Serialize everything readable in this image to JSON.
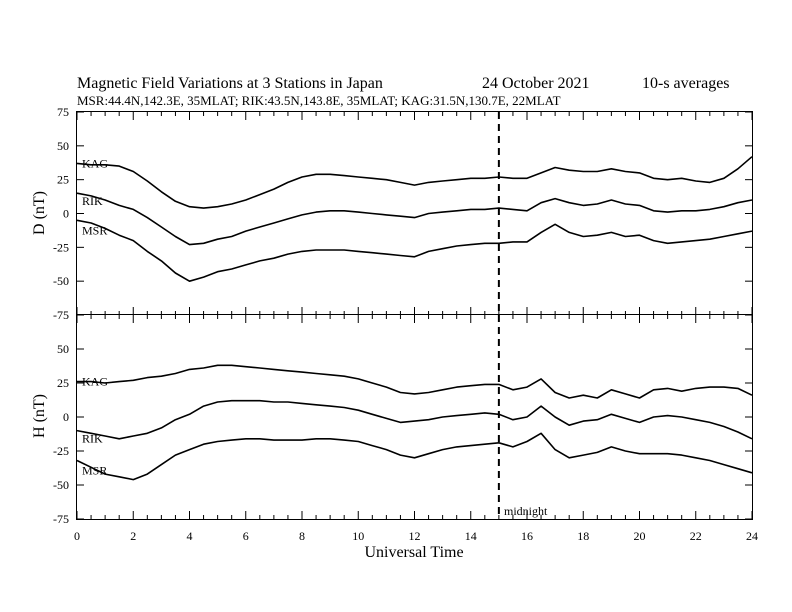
{
  "title": "Magnetic Field Variations at 3 Stations in Japan",
  "date": "24 October 2021",
  "averaging": "10-s averages",
  "stations_line": "MSR:44.4N,142.3E, 35MLAT;  RIK:43.5N,143.8E, 35MLAT;  KAG:31.5N,130.7E, 22MLAT",
  "xlabel": "Universal Time",
  "midnight_label": "midnight",
  "chart_data": [
    {
      "type": "line",
      "ylabel": "D (nT)",
      "xlim": [
        0,
        24
      ],
      "ylim": [
        -75,
        75
      ],
      "xticks": [
        0,
        2,
        4,
        6,
        8,
        10,
        12,
        14,
        16,
        18,
        20,
        22,
        24
      ],
      "yticks": [
        75,
        50,
        25,
        0,
        -25,
        -50,
        -75
      ],
      "vline_x": 15,
      "x": [
        0,
        0.5,
        1,
        1.5,
        2,
        2.5,
        3,
        3.5,
        4,
        4.5,
        5,
        5.5,
        6,
        6.5,
        7,
        7.5,
        8,
        8.5,
        9,
        9.5,
        10,
        10.5,
        11,
        11.5,
        12,
        12.5,
        13,
        13.5,
        14,
        14.5,
        15,
        15.5,
        16,
        16.5,
        17,
        17.5,
        18,
        18.5,
        19,
        19.5,
        20,
        20.5,
        21,
        21.5,
        22,
        22.5,
        23,
        23.5,
        24
      ],
      "series": [
        {
          "name": "KAG",
          "values": [
            37,
            36,
            36,
            35,
            31,
            24,
            16,
            9,
            5,
            4,
            5,
            7,
            10,
            14,
            18,
            23,
            27,
            29,
            29,
            28,
            27,
            26,
            25,
            23,
            21,
            23,
            24,
            25,
            26,
            26,
            27,
            26,
            26,
            30,
            34,
            32,
            31,
            31,
            33,
            31,
            30,
            26,
            25,
            26,
            24,
            23,
            26,
            33,
            42
          ]
        },
        {
          "name": "RIK",
          "values": [
            15,
            13,
            10,
            6,
            3,
            -3,
            -10,
            -17,
            -23,
            -22,
            -19,
            -17,
            -13,
            -10,
            -7,
            -4,
            -1,
            1,
            2,
            2,
            1,
            0,
            -1,
            -2,
            -3,
            0,
            1,
            2,
            3,
            3,
            4,
            3,
            2,
            8,
            11,
            8,
            6,
            7,
            10,
            7,
            6,
            2,
            1,
            2,
            2,
            3,
            5,
            8,
            10
          ]
        },
        {
          "name": "MSR",
          "values": [
            -5,
            -7,
            -11,
            -16,
            -20,
            -28,
            -35,
            -44,
            -50,
            -47,
            -43,
            -41,
            -38,
            -35,
            -33,
            -30,
            -28,
            -27,
            -27,
            -27,
            -28,
            -29,
            -30,
            -31,
            -32,
            -28,
            -26,
            -24,
            -23,
            -22,
            -22,
            -21,
            -21,
            -14,
            -8,
            -14,
            -17,
            -16,
            -14,
            -17,
            -16,
            -20,
            -22,
            -21,
            -20,
            -19,
            -17,
            -15,
            -13
          ]
        }
      ]
    },
    {
      "type": "line",
      "ylabel": "H (nT)",
      "xlim": [
        0,
        24
      ],
      "ylim": [
        -75,
        75
      ],
      "xticks": [
        0,
        2,
        4,
        6,
        8,
        10,
        12,
        14,
        16,
        18,
        20,
        22,
        24
      ],
      "yticks": [
        75,
        50,
        25,
        0,
        -25,
        -50,
        -75
      ],
      "vline_x": 15,
      "x": [
        0,
        0.5,
        1,
        1.5,
        2,
        2.5,
        3,
        3.5,
        4,
        4.5,
        5,
        5.5,
        6,
        6.5,
        7,
        7.5,
        8,
        8.5,
        9,
        9.5,
        10,
        10.5,
        11,
        11.5,
        12,
        12.5,
        13,
        13.5,
        14,
        14.5,
        15,
        15.5,
        16,
        16.5,
        17,
        17.5,
        18,
        18.5,
        19,
        19.5,
        20,
        20.5,
        21,
        21.5,
        22,
        22.5,
        23,
        23.5,
        24
      ],
      "series": [
        {
          "name": "KAG",
          "values": [
            26,
            26,
            25,
            26,
            27,
            29,
            30,
            32,
            35,
            36,
            38,
            38,
            37,
            36,
            35,
            34,
            33,
            32,
            31,
            30,
            28,
            25,
            22,
            18,
            17,
            18,
            20,
            22,
            23,
            24,
            24,
            20,
            22,
            28,
            18,
            14,
            16,
            14,
            20,
            17,
            14,
            20,
            21,
            19,
            21,
            22,
            22,
            21,
            16
          ]
        },
        {
          "name": "RIK",
          "values": [
            -10,
            -12,
            -14,
            -16,
            -14,
            -12,
            -8,
            -2,
            2,
            8,
            11,
            12,
            12,
            12,
            11,
            11,
            10,
            9,
            8,
            7,
            5,
            2,
            -1,
            -4,
            -3,
            -2,
            0,
            1,
            2,
            3,
            2,
            -2,
            0,
            8,
            0,
            -6,
            -3,
            -2,
            2,
            -1,
            -4,
            0,
            1,
            0,
            -2,
            -4,
            -7,
            -11,
            -16
          ]
        },
        {
          "name": "MSR",
          "values": [
            -32,
            -37,
            -42,
            -44,
            -46,
            -42,
            -35,
            -28,
            -24,
            -20,
            -18,
            -17,
            -16,
            -16,
            -17,
            -17,
            -17,
            -16,
            -16,
            -17,
            -18,
            -21,
            -24,
            -28,
            -30,
            -27,
            -24,
            -22,
            -21,
            -20,
            -19,
            -22,
            -18,
            -12,
            -24,
            -30,
            -28,
            -26,
            -22,
            -25,
            -27,
            -27,
            -27,
            -28,
            -30,
            -32,
            -35,
            -38,
            -41
          ]
        }
      ]
    }
  ]
}
